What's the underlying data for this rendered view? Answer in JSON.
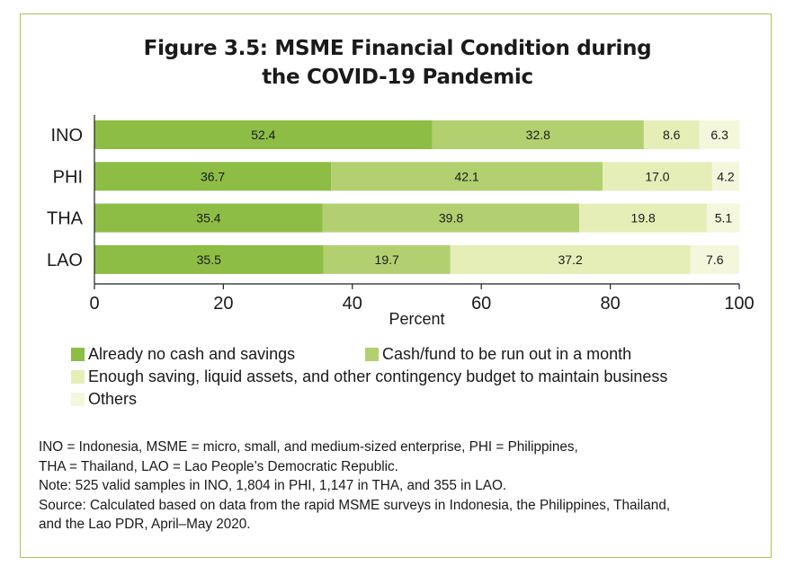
{
  "figure": {
    "title_line1": "Figure 3.5: MSME Financial Condition during",
    "title_line2": "the COVID-19 Pandemic"
  },
  "colors": {
    "border": "#a9c556",
    "series": [
      "#8dbd45",
      "#b2d070",
      "#e6eeb8",
      "#f4f7dc"
    ],
    "axis": "#222222",
    "grid": "#d0d0d0"
  },
  "chart_data": {
    "type": "bar",
    "orientation": "horizontal",
    "stacked": true,
    "categories": [
      "INO",
      "PHI",
      "THA",
      "LAO"
    ],
    "series": [
      {
        "name": "Already no cash and savings",
        "values": [
          52.4,
          36.7,
          35.4,
          35.5
        ]
      },
      {
        "name": "Cash/fund to be run out in a month",
        "values": [
          32.8,
          42.1,
          39.8,
          19.7
        ]
      },
      {
        "name": "Enough saving, liquid assets, and other contingency budget to maintain business",
        "values": [
          8.6,
          17.0,
          19.8,
          37.2
        ]
      },
      {
        "name": "Others",
        "values": [
          6.3,
          4.2,
          5.1,
          7.6
        ]
      }
    ],
    "xlabel": "Percent",
    "xlim": [
      0,
      100
    ],
    "xticks": [
      0,
      20,
      40,
      60,
      80,
      100
    ],
    "legend_position": "bottom",
    "grid": false
  },
  "notes": [
    "INO = Indonesia, MSME = micro, small, and medium-sized enterprise, PHI = Philippines,",
    "THA = Thailand, LAO = Lao People’s Democratic Republic.",
    "Note: 525 valid samples in INO, 1,804 in PHI, 1,147 in THA, and 355 in LAO.",
    "Source: Calculated based on data from the rapid MSME surveys in Indonesia, the Philippines, Thailand,",
    "and the Lao PDR, April–May 2020."
  ]
}
